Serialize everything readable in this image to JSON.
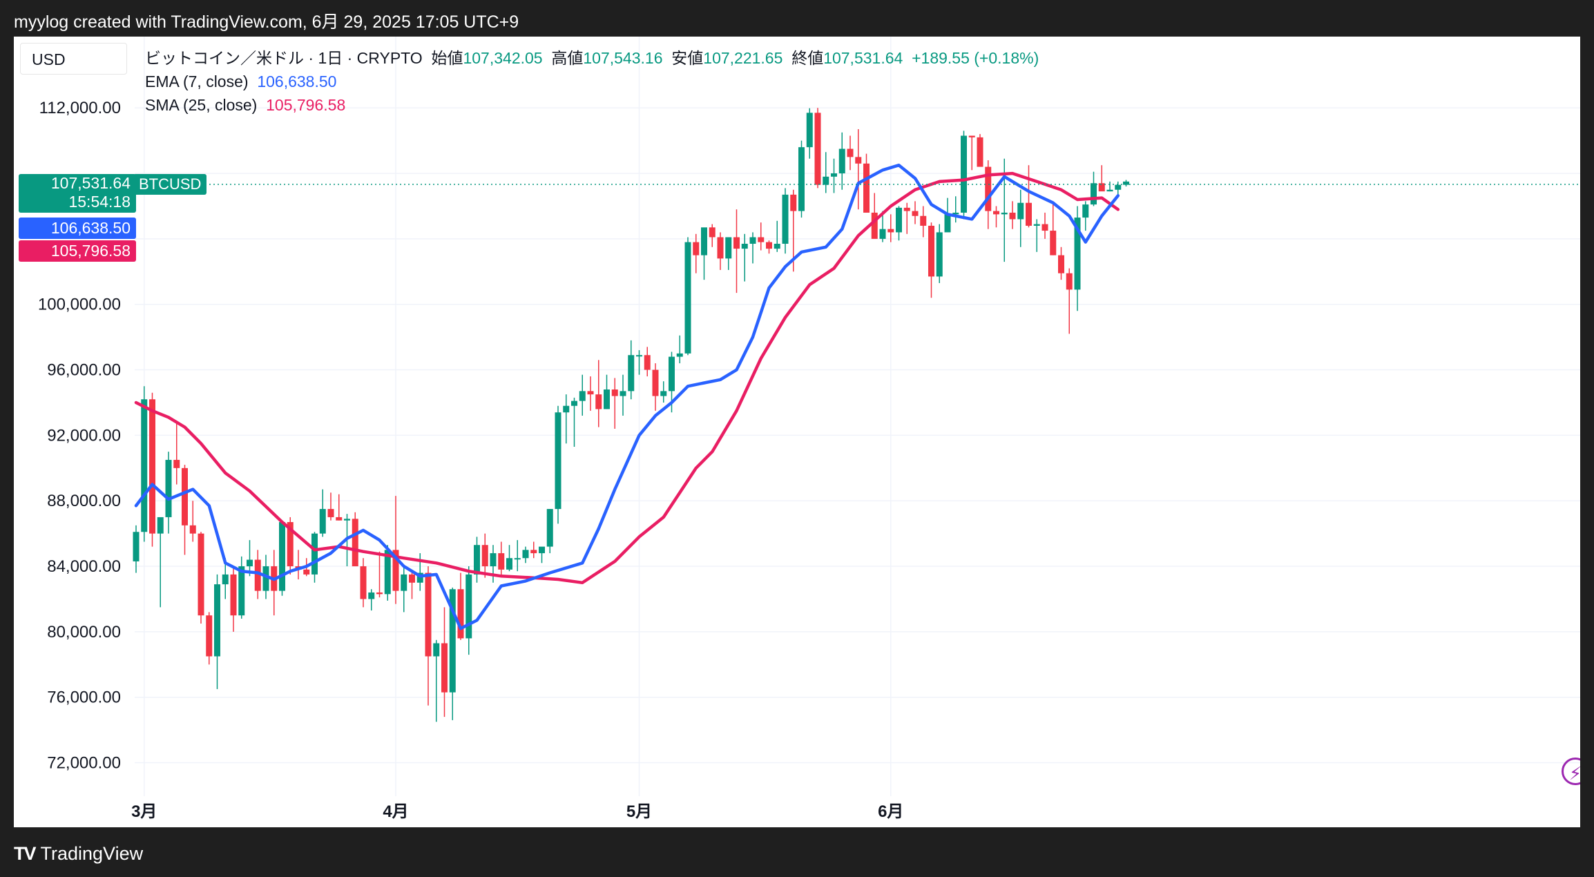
{
  "header": {
    "text": "myylog created with TradingView.com, 6月 29, 2025 17:05 UTC+9"
  },
  "footer": {
    "brand": "TradingView",
    "brand_mark": "TV"
  },
  "toolbar": {
    "currency": "USD"
  },
  "legend": {
    "symbol": "ビットコイン／米ドル · 1日 · CRYPTO",
    "open_label": "始値",
    "open": "107,342.05",
    "high_label": "高値",
    "high": "107,543.16",
    "low_label": "安値",
    "low": "107,221.65",
    "close_label": "終値",
    "close": "107,531.64",
    "change": "+189.55 (+0.18%)",
    "ema_label": "EMA (7, close)",
    "ema_value": "106,638.50",
    "sma_label": "SMA (25, close)",
    "sma_value": "105,796.58"
  },
  "price_tags": {
    "last_price": "107,531.64",
    "countdown": "15:54:18",
    "symbol_tag": "BTCUSD",
    "ema": "106,638.50",
    "sma": "105,796.58"
  },
  "icons": {
    "bolt": "lightning-icon"
  },
  "colors": {
    "up": "#089981",
    "down": "#f23645",
    "ema": "#2962ff",
    "sma": "#e91e63",
    "grid": "#f0f3fa",
    "text": "#131722"
  },
  "chart_data": {
    "type": "candlestick",
    "title": "ビットコイン／米ドル · 1日 · CRYPTO",
    "y_ticks": [
      "72,000.00",
      "76,000.00",
      "80,000.00",
      "84,000.00",
      "88,000.00",
      "92,000.00",
      "96,000.00",
      "100,000.00",
      "112,000.00"
    ],
    "y_tick_values": [
      72000,
      76000,
      80000,
      84000,
      88000,
      92000,
      96000,
      100000,
      112000
    ],
    "ylim": [
      70800,
      115300
    ],
    "x_ticks": [
      {
        "label": "3月",
        "date": "2025-03-01"
      },
      {
        "label": "4月",
        "date": "2025-04-01"
      },
      {
        "label": "5月",
        "date": "2025-05-01"
      },
      {
        "label": "6月",
        "date": "2025-06-01"
      }
    ],
    "grid": true,
    "start_date": "2025-02-28",
    "candles": [
      [
        84300,
        86500,
        83600,
        86100
      ],
      [
        86100,
        95000,
        85500,
        94200
      ],
      [
        94200,
        94600,
        85200,
        86000
      ],
      [
        86000,
        86800,
        81500,
        87000
      ],
      [
        87000,
        91000,
        86000,
        90500
      ],
      [
        90500,
        92800,
        89000,
        90000
      ],
      [
        90000,
        90200,
        84700,
        86500
      ],
      [
        86500,
        88000,
        85500,
        86000
      ],
      [
        86000,
        86100,
        80500,
        81000
      ],
      [
        81000,
        81200,
        78000,
        78500
      ],
      [
        78500,
        83500,
        76500,
        82900
      ],
      [
        82900,
        84500,
        82000,
        83500
      ],
      [
        83500,
        84000,
        80000,
        81000
      ],
      [
        81000,
        84600,
        80800,
        84000
      ],
      [
        84000,
        85600,
        83400,
        84400
      ],
      [
        84400,
        85000,
        82000,
        82500
      ],
      [
        82500,
        84700,
        82000,
        84000
      ],
      [
        84000,
        85000,
        81000,
        82500
      ],
      [
        82500,
        86800,
        82200,
        86700
      ],
      [
        86700,
        87000,
        83500,
        84000
      ],
      [
        84000,
        85000,
        83200,
        83800
      ],
      [
        83800,
        84500,
        83400,
        83500
      ],
      [
        83500,
        86100,
        83000,
        86000
      ],
      [
        86000,
        88700,
        85800,
        87500
      ],
      [
        87500,
        88500,
        86800,
        87000
      ],
      [
        87000,
        88400,
        86800,
        86800
      ],
      [
        86800,
        87200,
        84000,
        86900
      ],
      [
        86900,
        87300,
        84200,
        84000
      ],
      [
        84000,
        84500,
        81500,
        82000
      ],
      [
        82000,
        82600,
        81300,
        82400
      ],
      [
        82400,
        84900,
        82100,
        82300
      ],
      [
        82300,
        85300,
        81900,
        85000
      ],
      [
        85000,
        88300,
        81700,
        82500
      ],
      [
        82500,
        84000,
        81200,
        83500
      ],
      [
        83500,
        83800,
        82000,
        83000
      ],
      [
        83000,
        84800,
        82500,
        83600
      ],
      [
        83600,
        84000,
        75500,
        78500
      ],
      [
        78500,
        79500,
        74500,
        79300
      ],
      [
        79300,
        81500,
        74800,
        76300
      ],
      [
        76300,
        82700,
        74600,
        82600
      ],
      [
        82600,
        83600,
        79500,
        79600
      ],
      [
        79600,
        84000,
        78600,
        83500
      ],
      [
        83500,
        85800,
        83000,
        85300
      ],
      [
        85300,
        86000,
        83300,
        84000
      ],
      [
        84000,
        85300,
        83000,
        84800
      ],
      [
        84800,
        85500,
        83400,
        83800
      ],
      [
        83800,
        85300,
        83700,
        84500
      ],
      [
        84500,
        85600,
        83700,
        84500
      ],
      [
        84500,
        85200,
        84200,
        85000
      ],
      [
        85000,
        85500,
        84500,
        84800
      ],
      [
        84800,
        85000,
        84200,
        85200
      ],
      [
        85200,
        87500,
        84800,
        87500
      ],
      [
        87500,
        93800,
        86600,
        93400
      ],
      [
        93400,
        94500,
        91500,
        93800
      ],
      [
        93800,
        94300,
        91300,
        94100
      ],
      [
        94100,
        95700,
        93200,
        94700
      ],
      [
        94700,
        95600,
        93500,
        94500
      ],
      [
        94500,
        96600,
        92500,
        93600
      ],
      [
        93600,
        95700,
        93600,
        94800
      ],
      [
        94800,
        95500,
        92400,
        94400
      ],
      [
        94400,
        95700,
        93200,
        94700
      ],
      [
        94700,
        97800,
        94200,
        96900
      ],
      [
        96900,
        97200,
        95700,
        96900
      ],
      [
        96900,
        97400,
        95600,
        96000
      ],
      [
        96000,
        96400,
        93500,
        94400
      ],
      [
        94400,
        95300,
        94000,
        94700
      ],
      [
        94700,
        97100,
        93400,
        96800
      ],
      [
        96800,
        98100,
        96400,
        97000
      ],
      [
        97000,
        104100,
        96900,
        103800
      ],
      [
        103800,
        104300,
        101900,
        103000
      ],
      [
        103000,
        104300,
        101500,
        104700
      ],
      [
        104700,
        104900,
        103500,
        104100
      ],
      [
        104100,
        104400,
        102100,
        102800
      ],
      [
        102800,
        104100,
        102100,
        104100
      ],
      [
        104100,
        105800,
        100700,
        103400
      ],
      [
        103400,
        104300,
        101400,
        103700
      ],
      [
        103700,
        104400,
        102500,
        104100
      ],
      [
        104100,
        105000,
        103300,
        103800
      ],
      [
        103800,
        103900,
        103100,
        103400
      ],
      [
        103400,
        105100,
        103200,
        103700
      ],
      [
        103700,
        107100,
        103100,
        106700
      ],
      [
        106700,
        107000,
        102000,
        105700
      ],
      [
        105700,
        110000,
        105300,
        109600
      ],
      [
        109600,
        111980,
        108900,
        111700
      ],
      [
        111700,
        112000,
        107100,
        107300
      ],
      [
        107300,
        109300,
        106800,
        107800
      ],
      [
        107800,
        108900,
        106800,
        108000
      ],
      [
        108000,
        110500,
        107000,
        109500
      ],
      [
        109500,
        110300,
        108200,
        109000
      ],
      [
        109000,
        110700,
        105800,
        108600
      ],
      [
        108600,
        109200,
        105600,
        105600
      ],
      [
        105600,
        106800,
        104100,
        104000
      ],
      [
        104000,
        105700,
        103800,
        104600
      ],
      [
        104600,
        105500,
        103800,
        104400
      ],
      [
        104400,
        106000,
        103900,
        105900
      ],
      [
        105900,
        106200,
        104300,
        105700
      ],
      [
        105700,
        106300,
        104900,
        105400
      ],
      [
        105400,
        106000,
        104100,
        104800
      ],
      [
        104800,
        105000,
        100400,
        101700
      ],
      [
        101700,
        104900,
        101300,
        104400
      ],
      [
        104400,
        106500,
        104500,
        105500
      ],
      [
        105500,
        106600,
        105000,
        105600
      ],
      [
        105600,
        110600,
        105200,
        110300
      ],
      [
        110300,
        110300,
        108200,
        110200
      ],
      [
        110200,
        110400,
        108600,
        108400
      ],
      [
        108400,
        108800,
        104600,
        105700
      ],
      [
        105700,
        106000,
        104700,
        105500
      ],
      [
        105500,
        108900,
        102600,
        105600
      ],
      [
        105600,
        106300,
        104600,
        105200
      ],
      [
        105200,
        107000,
        103500,
        106200
      ],
      [
        106200,
        108500,
        104700,
        104800
      ],
      [
        104800,
        105200,
        103200,
        104900
      ],
      [
        104900,
        105600,
        104000,
        104500
      ],
      [
        104500,
        106300,
        103000,
        103000
      ],
      [
        103000,
        103500,
        101500,
        101900
      ],
      [
        101900,
        102200,
        98200,
        100900
      ],
      [
        100900,
        106000,
        99600,
        105300
      ],
      [
        105300,
        106300,
        104500,
        106100
      ],
      [
        106100,
        108100,
        106000,
        107400
      ],
      [
        107400,
        108500,
        107000,
        106900
      ],
      [
        106900,
        107500,
        106900,
        107000
      ],
      [
        107000,
        107500,
        106600,
        107300
      ],
      [
        107300,
        107600,
        107200,
        107500
      ]
    ],
    "ema": [
      {
        "date": "2025-02-28",
        "value": 87700
      },
      {
        "date": "2025-03-02",
        "value": 89000
      },
      {
        "date": "2025-03-04",
        "value": 88100
      },
      {
        "date": "2025-03-07",
        "value": 88700
      },
      {
        "date": "2025-03-09",
        "value": 87700
      },
      {
        "date": "2025-03-11",
        "value": 84200
      },
      {
        "date": "2025-03-13",
        "value": 83700
      },
      {
        "date": "2025-03-15",
        "value": 83600
      },
      {
        "date": "2025-03-17",
        "value": 83200
      },
      {
        "date": "2025-03-19",
        "value": 83700
      },
      {
        "date": "2025-03-21",
        "value": 84000
      },
      {
        "date": "2025-03-24",
        "value": 84800
      },
      {
        "date": "2025-03-26",
        "value": 85700
      },
      {
        "date": "2025-03-28",
        "value": 86200
      },
      {
        "date": "2025-03-30",
        "value": 85600
      },
      {
        "date": "2025-04-02",
        "value": 84000
      },
      {
        "date": "2025-04-04",
        "value": 83400
      },
      {
        "date": "2025-04-06",
        "value": 83500
      },
      {
        "date": "2025-04-09",
        "value": 80200
      },
      {
        "date": "2025-04-11",
        "value": 80700
      },
      {
        "date": "2025-04-14",
        "value": 82800
      },
      {
        "date": "2025-04-17",
        "value": 83100
      },
      {
        "date": "2025-04-20",
        "value": 83600
      },
      {
        "date": "2025-04-24",
        "value": 84200
      },
      {
        "date": "2025-04-26",
        "value": 86300
      },
      {
        "date": "2025-04-28",
        "value": 88700
      },
      {
        "date": "2025-05-01",
        "value": 92000
      },
      {
        "date": "2025-05-03",
        "value": 93200
      },
      {
        "date": "2025-05-05",
        "value": 94000
      },
      {
        "date": "2025-05-07",
        "value": 95000
      },
      {
        "date": "2025-05-09",
        "value": 95200
      },
      {
        "date": "2025-05-11",
        "value": 95400
      },
      {
        "date": "2025-05-13",
        "value": 96000
      },
      {
        "date": "2025-05-15",
        "value": 98000
      },
      {
        "date": "2025-05-16",
        "value": 99500
      },
      {
        "date": "2025-05-17",
        "value": 101000
      },
      {
        "date": "2025-05-19",
        "value": 102300
      },
      {
        "date": "2025-05-21",
        "value": 103200
      },
      {
        "date": "2025-05-24",
        "value": 103500
      },
      {
        "date": "2025-05-26",
        "value": 104600
      },
      {
        "date": "2025-05-28",
        "value": 107400
      },
      {
        "date": "2025-05-31",
        "value": 108200
      },
      {
        "date": "2025-06-02",
        "value": 108500
      },
      {
        "date": "2025-06-04",
        "value": 107700
      },
      {
        "date": "2025-06-06",
        "value": 106100
      },
      {
        "date": "2025-06-08",
        "value": 105500
      },
      {
        "date": "2025-06-11",
        "value": 105200
      },
      {
        "date": "2025-06-13",
        "value": 106500
      },
      {
        "date": "2025-06-15",
        "value": 107800
      },
      {
        "date": "2025-06-18",
        "value": 106900
      },
      {
        "date": "2025-06-21",
        "value": 106200
      },
      {
        "date": "2025-06-23",
        "value": 105400
      },
      {
        "date": "2025-06-25",
        "value": 103800
      },
      {
        "date": "2025-06-27",
        "value": 105400
      },
      {
        "date": "2025-06-29",
        "value": 106638.5
      }
    ],
    "sma": [
      {
        "date": "2025-02-28",
        "value": 94000
      },
      {
        "date": "2025-03-02",
        "value": 93500
      },
      {
        "date": "2025-03-04",
        "value": 93100
      },
      {
        "date": "2025-03-06",
        "value": 92500
      },
      {
        "date": "2025-03-08",
        "value": 91500
      },
      {
        "date": "2025-03-11",
        "value": 89700
      },
      {
        "date": "2025-03-14",
        "value": 88600
      },
      {
        "date": "2025-03-18",
        "value": 86700
      },
      {
        "date": "2025-03-22",
        "value": 85000
      },
      {
        "date": "2025-03-25",
        "value": 85200
      },
      {
        "date": "2025-03-28",
        "value": 84900
      },
      {
        "date": "2025-04-02",
        "value": 84500
      },
      {
        "date": "2025-04-06",
        "value": 84200
      },
      {
        "date": "2025-04-10",
        "value": 83700
      },
      {
        "date": "2025-04-14",
        "value": 83400
      },
      {
        "date": "2025-04-18",
        "value": 83300
      },
      {
        "date": "2025-04-21",
        "value": 83200
      },
      {
        "date": "2025-04-24",
        "value": 83000
      },
      {
        "date": "2025-04-28",
        "value": 84300
      },
      {
        "date": "2025-05-01",
        "value": 85800
      },
      {
        "date": "2025-05-04",
        "value": 87000
      },
      {
        "date": "2025-05-06",
        "value": 88500
      },
      {
        "date": "2025-05-08",
        "value": 90000
      },
      {
        "date": "2025-05-10",
        "value": 91000
      },
      {
        "date": "2025-05-13",
        "value": 93500
      },
      {
        "date": "2025-05-16",
        "value": 96700
      },
      {
        "date": "2025-05-19",
        "value": 99200
      },
      {
        "date": "2025-05-22",
        "value": 101200
      },
      {
        "date": "2025-05-25",
        "value": 102200
      },
      {
        "date": "2025-05-28",
        "value": 104200
      },
      {
        "date": "2025-06-01",
        "value": 106000
      },
      {
        "date": "2025-06-04",
        "value": 107000
      },
      {
        "date": "2025-06-07",
        "value": 107500
      },
      {
        "date": "2025-06-10",
        "value": 107600
      },
      {
        "date": "2025-06-13",
        "value": 107900
      },
      {
        "date": "2025-06-16",
        "value": 108000
      },
      {
        "date": "2025-06-19",
        "value": 107500
      },
      {
        "date": "2025-06-22",
        "value": 107000
      },
      {
        "date": "2025-06-24",
        "value": 106400
      },
      {
        "date": "2025-06-27",
        "value": 106500
      },
      {
        "date": "2025-06-29",
        "value": 105796.58
      }
    ]
  }
}
